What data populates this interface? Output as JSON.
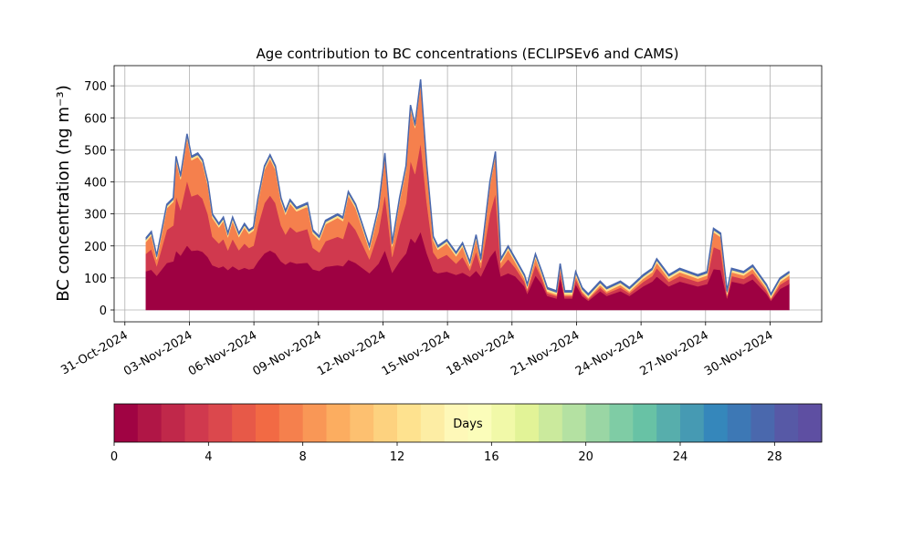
{
  "chart_data": {
    "type": "area",
    "stacked": true,
    "title": "Age contribution to BC concentrations (ECLIPSEv6 and CAMS)",
    "ylabel": "BC concentration (ng m⁻³)",
    "grid": true,
    "xlim": [
      -0.5,
      32.4
    ],
    "xticks": [
      {
        "value": 0,
        "label": "31-Oct-2024"
      },
      {
        "value": 3,
        "label": "03-Nov-2024"
      },
      {
        "value": 6,
        "label": "06-Nov-2024"
      },
      {
        "value": 9,
        "label": "09-Nov-2024"
      },
      {
        "value": 12,
        "label": "12-Nov-2024"
      },
      {
        "value": 15,
        "label": "15-Nov-2024"
      },
      {
        "value": 18,
        "label": "18-Nov-2024"
      },
      {
        "value": 21,
        "label": "21-Nov-2024"
      },
      {
        "value": 24,
        "label": "24-Nov-2024"
      },
      {
        "value": 27,
        "label": "27-Nov-2024"
      },
      {
        "value": 30,
        "label": "30-Nov-2024"
      }
    ],
    "ylim": [
      -37,
      763
    ],
    "yticks": [
      0,
      100,
      200,
      300,
      400,
      500,
      600,
      700
    ],
    "x": [
      0.98,
      1.23,
      1.48,
      1.95,
      2.25,
      2.38,
      2.59,
      2.89,
      3.1,
      3.39,
      3.61,
      3.86,
      4.07,
      4.37,
      4.58,
      4.79,
      5.01,
      5.3,
      5.56,
      5.77,
      5.98,
      6.19,
      6.49,
      6.75,
      7.0,
      7.26,
      7.47,
      7.68,
      7.98,
      8.49,
      8.74,
      9.04,
      9.33,
      9.89,
      10.14,
      10.39,
      10.73,
      11.03,
      11.37,
      11.79,
      12.09,
      12.43,
      12.77,
      13.07,
      13.28,
      13.49,
      13.75,
      14.04,
      14.34,
      14.55,
      14.97,
      15.4,
      15.7,
      16.04,
      16.33,
      16.55,
      16.97,
      17.23,
      17.48,
      17.82,
      18.16,
      18.58,
      18.71,
      19.09,
      19.39,
      19.64,
      20.07,
      20.24,
      20.45,
      20.79,
      20.96,
      21.26,
      21.55,
      22.1,
      22.4,
      23.04,
      23.46,
      24.1,
      24.52,
      24.73,
      25.29,
      25.8,
      26.64,
      27.07,
      27.37,
      27.7,
      28.0,
      28.21,
      28.77,
      29.19,
      29.83,
      30.04,
      30.46,
      30.89
    ],
    "series": [
      {
        "color": "#9e0142",
        "values": [
          121,
          126,
          107,
          147,
          152,
          185,
          170,
          202,
          185,
          187,
          182,
          165,
          140,
          132,
          137,
          125,
          137,
          125,
          132,
          127,
          130,
          152,
          177,
          186,
          177,
          152,
          142,
          151,
          145,
          148,
          127,
          122,
          135,
          140,
          137,
          157,
          147,
          132,
          115,
          145,
          187,
          117,
          152,
          177,
          225,
          210,
          245,
          177,
          122,
          115,
          120,
          110,
          117,
          104,
          123,
          105,
          165,
          188,
          105,
          115,
          105,
          74,
          51,
          108,
          81,
          44,
          36,
          100,
          36,
          36,
          81,
          44,
          29,
          59,
          44,
          59,
          44,
          74,
          89,
          105,
          74,
          89,
          74,
          81,
          128,
          125,
          36,
          89,
          81,
          96,
          51,
          29,
          66,
          81
        ]
      },
      {
        "color": "#d0394e",
        "values": [
          55,
          64,
          31,
          103,
          112,
          170,
          143,
          202,
          170,
          175,
          166,
          134,
          89,
          76,
          85,
          62,
          85,
          62,
          76,
          67,
          71,
          112,
          157,
          172,
          157,
          112,
          94,
          109,
          98,
          105,
          67,
          58,
          80,
          89,
          85,
          121,
          103,
          76,
          44,
          98,
          175,
          49,
          112,
          157,
          242,
          215,
          278,
          157,
          58,
          44,
          53,
          35,
          49,
          20,
          60,
          26,
          134,
          177,
          26,
          44,
          26,
          14,
          10,
          33,
          16,
          8,
          7,
          20,
          7,
          7,
          16,
          8,
          5,
          11,
          8,
          11,
          8,
          14,
          17,
          26,
          14,
          17,
          14,
          16,
          69,
          62,
          7,
          17,
          16,
          19,
          10,
          5,
          13,
          16
        ]
      },
      {
        "color": "#f5804d",
        "values": [
          37,
          43,
          20,
          68,
          74,
          113,
          95,
          134,
          113,
          116,
          110,
          89,
          59,
          50,
          56,
          41,
          56,
          41,
          50,
          44,
          47,
          74,
          104,
          115,
          104,
          74,
          62,
          73,
          65,
          70,
          44,
          38,
          53,
          59,
          56,
          80,
          68,
          50,
          29,
          65,
          116,
          32,
          74,
          104,
          161,
          143,
          185,
          104,
          38,
          29,
          35,
          23,
          32,
          14,
          40,
          17,
          89,
          118,
          17,
          29,
          17,
          10,
          7,
          22,
          11,
          6,
          5,
          13,
          5,
          5,
          11,
          6,
          4,
          8,
          6,
          8,
          6,
          10,
          12,
          17,
          10,
          12,
          10,
          11,
          46,
          41,
          5,
          12,
          11,
          13,
          7,
          4,
          9,
          11
        ]
      },
      {
        "color": "#fee28f",
        "values": [
          7,
          7,
          7,
          7,
          7,
          7,
          7,
          7,
          7,
          7,
          7,
          7,
          7,
          7,
          7,
          7,
          7,
          7,
          7,
          7,
          7,
          7,
          7,
          7,
          7,
          7,
          7,
          7,
          7,
          7,
          7,
          7,
          7,
          7,
          7,
          7,
          7,
          7,
          7,
          7,
          7,
          7,
          7,
          7,
          7,
          7,
          7,
          7,
          7,
          7,
          7,
          7,
          7,
          7,
          7,
          7,
          7,
          7,
          7,
          7,
          7,
          7,
          7,
          7,
          7,
          7,
          7,
          7,
          7,
          7,
          7,
          7,
          7,
          7,
          7,
          7,
          7,
          7,
          7,
          7,
          7,
          7,
          7,
          7,
          7,
          7,
          7,
          7,
          7,
          7,
          7,
          7,
          7,
          7
        ]
      },
      {
        "color": "#4a68ad",
        "values": [
          5,
          5,
          5,
          5,
          5,
          5,
          5,
          5,
          5,
          5,
          5,
          5,
          5,
          5,
          5,
          5,
          5,
          5,
          5,
          5,
          5,
          5,
          5,
          5,
          5,
          5,
          5,
          5,
          5,
          5,
          5,
          5,
          5,
          5,
          5,
          5,
          5,
          5,
          5,
          5,
          5,
          5,
          5,
          5,
          5,
          5,
          5,
          5,
          5,
          5,
          5,
          5,
          5,
          5,
          5,
          5,
          5,
          5,
          5,
          5,
          5,
          5,
          5,
          5,
          5,
          5,
          5,
          5,
          5,
          5,
          5,
          5,
          5,
          5,
          5,
          5,
          5,
          5,
          5,
          5,
          5,
          5,
          5,
          5,
          5,
          5,
          5,
          5,
          5,
          5,
          5,
          5,
          5,
          5
        ]
      }
    ],
    "colorbar": {
      "label": "Days",
      "lim": [
        0,
        30
      ],
      "ticks": [
        0,
        4,
        8,
        12,
        16,
        20,
        24,
        28
      ],
      "colors": [
        "#a00343",
        "#b01646",
        "#c0284a",
        "#d0394e",
        "#db484d",
        "#e75948",
        "#f26a44",
        "#f5804d",
        "#f99756",
        "#fcad60",
        "#fdc070",
        "#fdd27f",
        "#fee28f",
        "#fdeda4",
        "#fef8b8",
        "#fbfdba",
        "#f1f9a8",
        "#e2f397",
        "#cbea9d",
        "#b4e1a2",
        "#9ad6a4",
        "#7fcca5",
        "#68c2a5",
        "#57aeac",
        "#469ab3",
        "#3587bb",
        "#3d78b5",
        "#4a68ad",
        "#5759a6",
        "#5e4fa2"
      ]
    }
  }
}
